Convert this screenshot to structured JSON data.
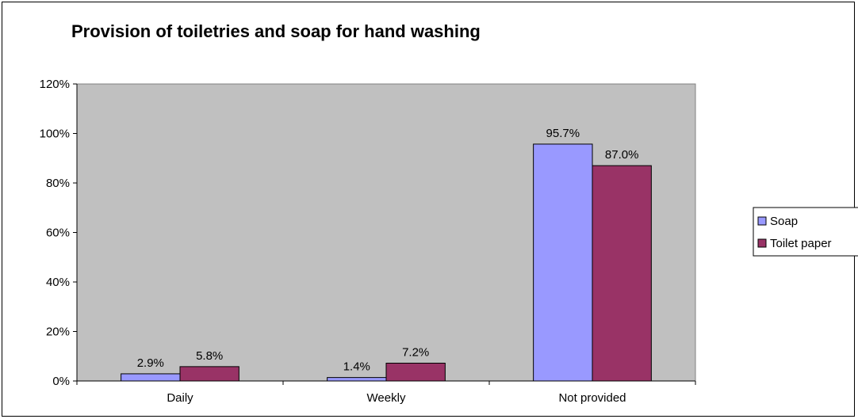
{
  "chart_data": {
    "type": "bar",
    "title": "Provision of toiletries and soap for hand washing",
    "xlabel": "",
    "ylabel": "",
    "categories": [
      "Daily",
      "Weekly",
      "Not provided"
    ],
    "series": [
      {
        "name": "Soap",
        "values": [
          2.9,
          1.4,
          95.7
        ],
        "labels": [
          "2.9%",
          "1.4%",
          "95.7%"
        ],
        "color": "#9999FF"
      },
      {
        "name": "Toilet paper",
        "values": [
          5.8,
          7.2,
          87.0
        ],
        "labels": [
          "5.8%",
          "7.2%",
          "87.0%"
        ],
        "color": "#993366"
      }
    ],
    "ylim": [
      0,
      120
    ],
    "yticks": [
      0,
      20,
      40,
      60,
      80,
      100,
      120
    ],
    "ytick_labels": [
      "0%",
      "20%",
      "40%",
      "60%",
      "80%",
      "100%",
      "120%"
    ],
    "plot_background": "#C0C0C0",
    "grid": false,
    "legend_position": "right"
  }
}
